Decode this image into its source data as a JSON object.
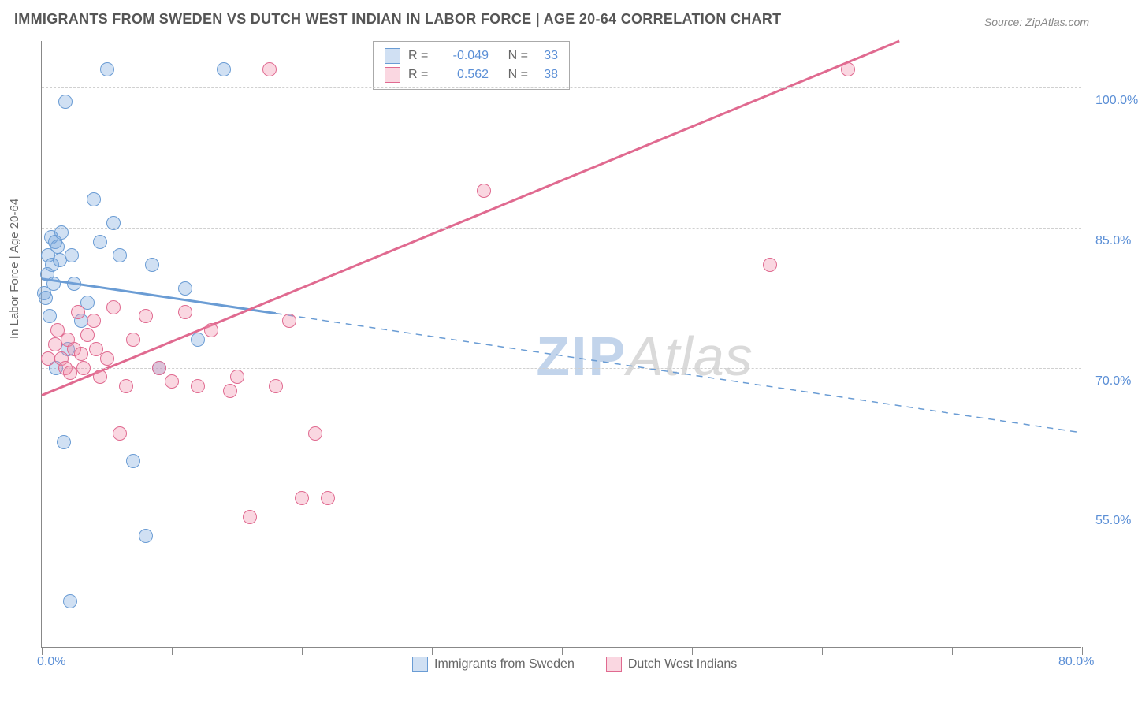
{
  "title": "IMMIGRANTS FROM SWEDEN VS DUTCH WEST INDIAN IN LABOR FORCE | AGE 20-64 CORRELATION CHART",
  "source_label": "Source:",
  "source_value": "ZipAtlas.com",
  "ylabel": "In Labor Force | Age 20-64",
  "watermark_a": "ZIP",
  "watermark_b": "Atlas",
  "chart": {
    "type": "scatter-with-trendlines",
    "xlim": [
      0,
      80
    ],
    "ylim": [
      40,
      105
    ],
    "xtick_labels": [
      "0.0%",
      "80.0%"
    ],
    "xtick_positions": [
      0,
      80
    ],
    "xtick_marks": [
      0,
      10,
      20,
      30,
      40,
      50,
      60,
      70,
      80
    ],
    "ytick_labels": [
      "55.0%",
      "70.0%",
      "85.0%",
      "100.0%"
    ],
    "ytick_positions": [
      55,
      70,
      85,
      100
    ],
    "grid_color": "#d0d0d0",
    "axis_color": "#888888",
    "background_color": "#ffffff",
    "label_color": "#5b8fd6",
    "text_color": "#666666",
    "title_fontsize": 18,
    "label_fontsize": 15,
    "tick_fontsize": 16,
    "marker_radius": 9,
    "marker_opacity": 0.35,
    "series": [
      {
        "name": "Immigrants from Sweden",
        "color_fill": "rgba(120,165,220,0.35)",
        "color_stroke": "#6a9cd4",
        "r": "-0.049",
        "n": "33",
        "trend": {
          "x1": 0,
          "y1": 79.5,
          "x2": 80,
          "y2": 63,
          "solid_until_x": 18
        },
        "points": [
          [
            0.2,
            78
          ],
          [
            0.5,
            82
          ],
          [
            0.7,
            84
          ],
          [
            0.8,
            81
          ],
          [
            0.4,
            80
          ],
          [
            1.0,
            83.5
          ],
          [
            1.2,
            83
          ],
          [
            1.5,
            84.5
          ],
          [
            0.3,
            77.5
          ],
          [
            1.8,
            98.5
          ],
          [
            2.0,
            72
          ],
          [
            2.5,
            79
          ],
          [
            3.0,
            75
          ],
          [
            2.3,
            82
          ],
          [
            4.0,
            88
          ],
          [
            4.5,
            83.5
          ],
          [
            5.0,
            102
          ],
          [
            6.0,
            82
          ],
          [
            7.0,
            60
          ],
          [
            8.0,
            52
          ],
          [
            8.5,
            81
          ],
          [
            3.5,
            77
          ],
          [
            2.2,
            45
          ],
          [
            1.7,
            62
          ],
          [
            11.0,
            78.5
          ],
          [
            14.0,
            102
          ],
          [
            12.0,
            73
          ],
          [
            1.1,
            70
          ],
          [
            0.6,
            75.5
          ],
          [
            0.9,
            79
          ],
          [
            1.4,
            81.5
          ],
          [
            9.0,
            70
          ],
          [
            5.5,
            85.5
          ]
        ]
      },
      {
        "name": "Dutch West Indians",
        "color_fill": "rgba(240,140,170,0.35)",
        "color_stroke": "#e06a90",
        "r": "0.562",
        "n": "38",
        "trend": {
          "x1": 0,
          "y1": 67,
          "x2": 66,
          "y2": 105,
          "solid_until_x": 66
        },
        "points": [
          [
            0.5,
            71
          ],
          [
            1.0,
            72.5
          ],
          [
            1.2,
            74
          ],
          [
            1.5,
            71
          ],
          [
            1.8,
            70
          ],
          [
            2.0,
            73
          ],
          [
            2.2,
            69.5
          ],
          [
            2.5,
            72
          ],
          [
            2.8,
            76
          ],
          [
            3.0,
            71.5
          ],
          [
            3.2,
            70
          ],
          [
            3.5,
            73.5
          ],
          [
            4.0,
            75
          ],
          [
            4.2,
            72
          ],
          [
            4.5,
            69
          ],
          [
            5.0,
            71
          ],
          [
            5.5,
            76.5
          ],
          [
            6.0,
            63
          ],
          [
            6.5,
            68
          ],
          [
            7.0,
            73
          ],
          [
            8.0,
            75.5
          ],
          [
            9.0,
            70
          ],
          [
            10.0,
            68.5
          ],
          [
            11.0,
            76
          ],
          [
            12.0,
            68
          ],
          [
            13.0,
            74
          ],
          [
            14.5,
            67.5
          ],
          [
            16.0,
            54
          ],
          [
            15.0,
            69
          ],
          [
            18.0,
            68
          ],
          [
            19.0,
            75
          ],
          [
            17.5,
            102
          ],
          [
            20.0,
            56
          ],
          [
            21.0,
            63
          ],
          [
            22.0,
            56
          ],
          [
            34.0,
            89
          ],
          [
            56.0,
            81
          ],
          [
            62.0,
            102
          ]
        ]
      }
    ]
  }
}
